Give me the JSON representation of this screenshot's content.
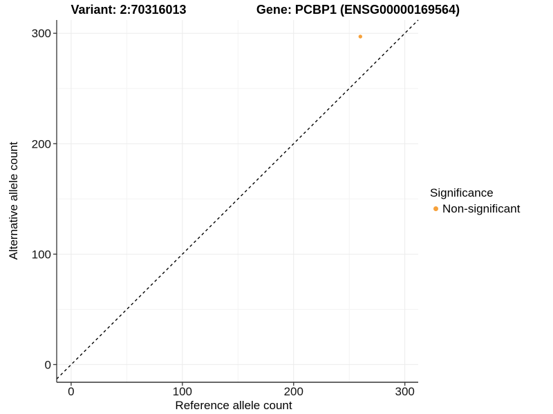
{
  "chart_data": {
    "type": "scatter",
    "title_left": "Variant: 2:70316013",
    "title_right": "Gene: PCBP1 (ENSG00000169564)",
    "xlabel": "Reference allele count",
    "ylabel": "Alternative allele count",
    "xlim": [
      -13,
      312
    ],
    "ylim": [
      -16,
      312
    ],
    "x_ticks": [
      0,
      100,
      200,
      300
    ],
    "y_ticks": [
      0,
      100,
      200,
      300
    ],
    "x_minor_ticks": [
      50,
      150,
      250
    ],
    "y_minor_ticks": [
      50,
      150,
      250
    ],
    "grid": true,
    "legend_position": "right",
    "legend_title": "Significance",
    "reference_line": {
      "equation": "y = x",
      "style": "dashed",
      "color": "#000000"
    },
    "series": [
      {
        "name": "Non-significant",
        "color": "#F6A13B",
        "points": [
          {
            "x": 260,
            "y": 297
          }
        ]
      }
    ],
    "colors": {
      "background": "#FFFFFF",
      "panel_background": "#FFFFFF",
      "grid_major": "#EBEBEB",
      "grid_minor": "#F3F3F3",
      "axis_line": "#333333",
      "tick_mark": "#333333",
      "tick_label": "#111111"
    }
  }
}
